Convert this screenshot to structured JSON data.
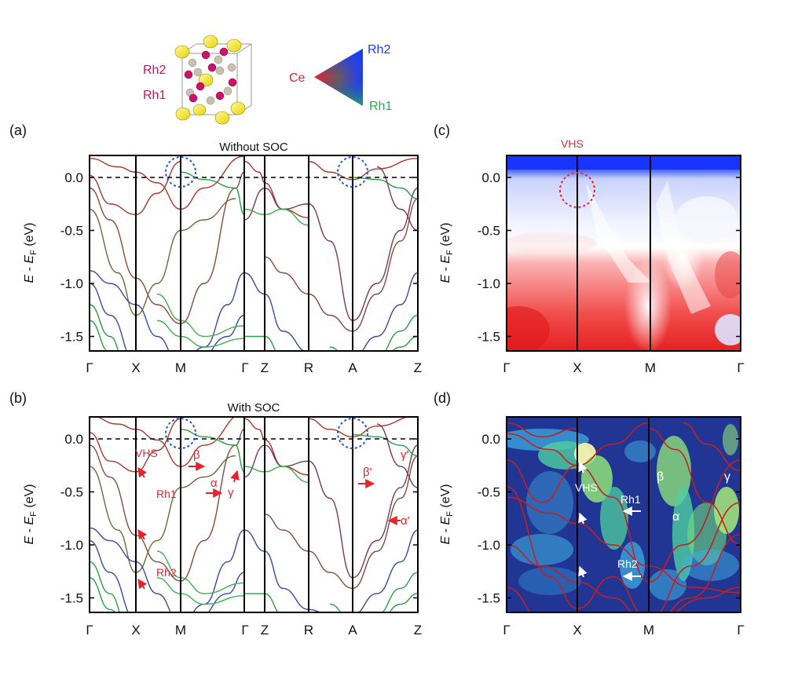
{
  "header": {
    "crystal_labels": [
      "Rh2",
      "Rh1"
    ],
    "triangle_labels": {
      "top": "Rh2",
      "left": "Ce",
      "bottom": "Rh1"
    },
    "colors": {
      "ce": "#e5242c",
      "rh1": "#22b14c",
      "rh2": "#1a3cff"
    }
  },
  "panels": {
    "a": {
      "label": "(a)",
      "title": "Without SOC"
    },
    "b": {
      "label": "(b)",
      "title": "With SOC"
    },
    "c": {
      "label": "(c)",
      "annotation": "VHS"
    },
    "d": {
      "label": "(d)"
    }
  },
  "axis": {
    "ylabel_E": "E",
    "ylabel_sep": " - ",
    "ylabel_EF": "E",
    "ylabel_sub": "F",
    "ylabel_unit": " (eV)",
    "yticks": [
      "0.0",
      "-0.5",
      "-1.0",
      "-1.5"
    ],
    "dft_kpath": [
      "Γ",
      "X",
      "M",
      "Γ",
      "Z",
      "R",
      "A",
      "Z"
    ],
    "arpes_kpath": [
      "Γ",
      "X",
      "M",
      "Γ"
    ]
  },
  "annotations_b": [
    "VHS",
    "Rh1",
    "Rh2",
    "β",
    "α",
    "γ",
    "β'",
    "γ'",
    "α'"
  ],
  "annotations_d": [
    "VHS",
    "Rh1",
    "Rh2",
    "β",
    "α",
    "γ"
  ],
  "chart_data": [
    {
      "type": "line",
      "panel": "a",
      "title": "Without SOC",
      "xlabel": "",
      "ylabel": "E - EF (eV)",
      "ylim": [
        -1.82,
        0.2
      ],
      "xticks": [
        "Γ",
        "X",
        "M",
        "Γ",
        "Z",
        "R",
        "A",
        "Z"
      ],
      "fermi_level": 0.0
    },
    {
      "type": "line",
      "panel": "b",
      "title": "With SOC",
      "xlabel": "",
      "ylabel": "E - EF (eV)",
      "ylim": [
        -1.82,
        0.2
      ],
      "xticks": [
        "Γ",
        "X",
        "M",
        "Γ",
        "Z",
        "R",
        "A",
        "Z"
      ],
      "fermi_level": 0.0
    },
    {
      "type": "heatmap",
      "panel": "c",
      "ylabel": "E - EF (eV)",
      "ylim": [
        -1.82,
        0.2
      ],
      "xticks": [
        "Γ",
        "X",
        "M",
        "Γ"
      ]
    },
    {
      "type": "heatmap",
      "panel": "d",
      "ylabel": "E - EF (eV)",
      "ylim": [
        -1.82,
        0.2
      ],
      "xticks": [
        "Γ",
        "X",
        "M",
        "Γ"
      ]
    }
  ]
}
